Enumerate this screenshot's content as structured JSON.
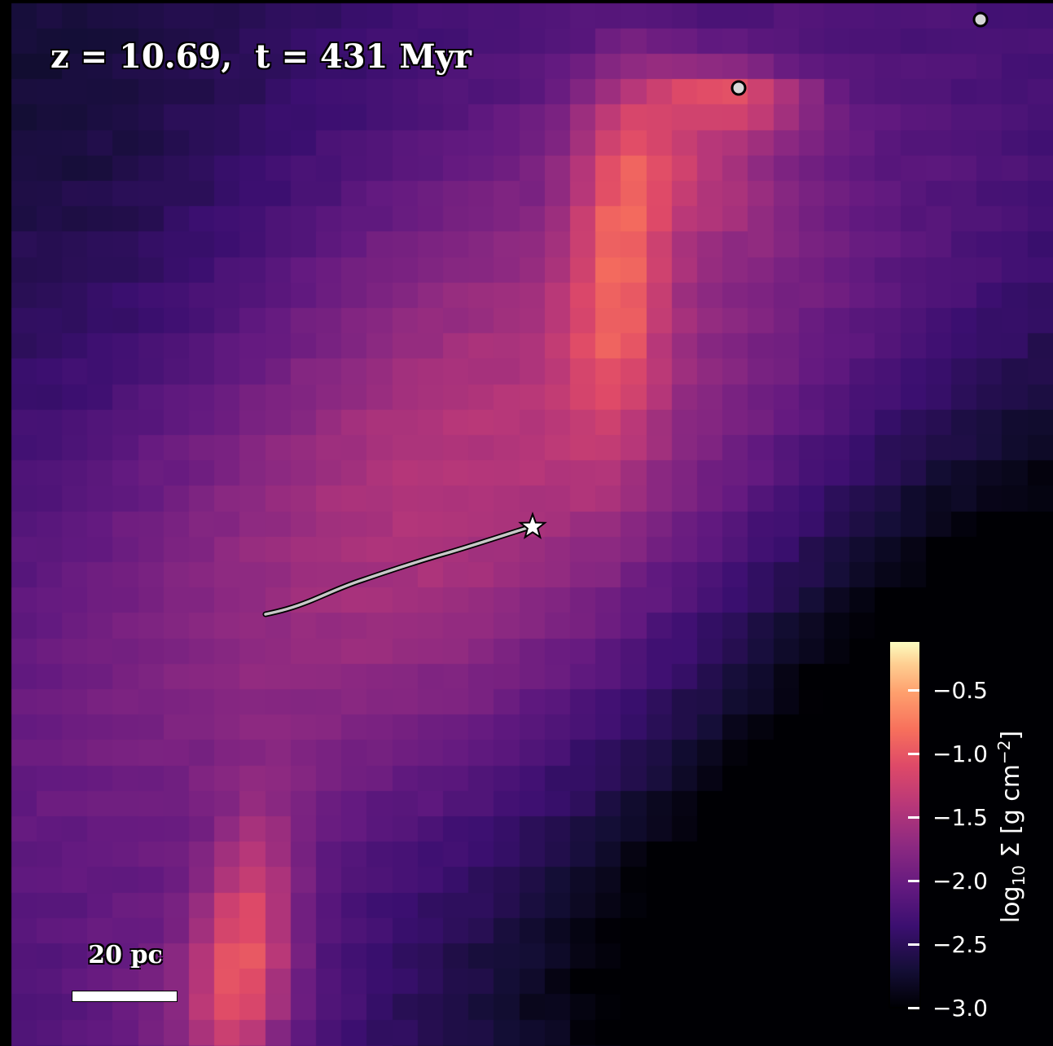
{
  "panel": {
    "title": "z = 10.69,  t = 431 Myr",
    "scale_bar_label": "20 pc"
  },
  "colorbar": {
    "colormap": "magma",
    "label_main": "log",
    "label_sub": "10",
    "label_rest": " Σ [g cm",
    "label_exp": "−2",
    "label_close": "]",
    "range": [
      -3.0,
      0.0
    ],
    "ticks": [
      "−0.5",
      "−1.0",
      "−1.5",
      "−2.0",
      "−2.5",
      "−3.0"
    ],
    "tick_values": [
      -0.5,
      -1.0,
      -1.5,
      -2.0,
      -2.5,
      -3.0
    ]
  },
  "markers": {
    "star_icon": "star-icon",
    "point_icon": "circle-marker-icon"
  },
  "colors": {
    "trail": "#c8c8c8",
    "marker_fill": "#d8d8d8",
    "text": "#ffffff"
  }
}
